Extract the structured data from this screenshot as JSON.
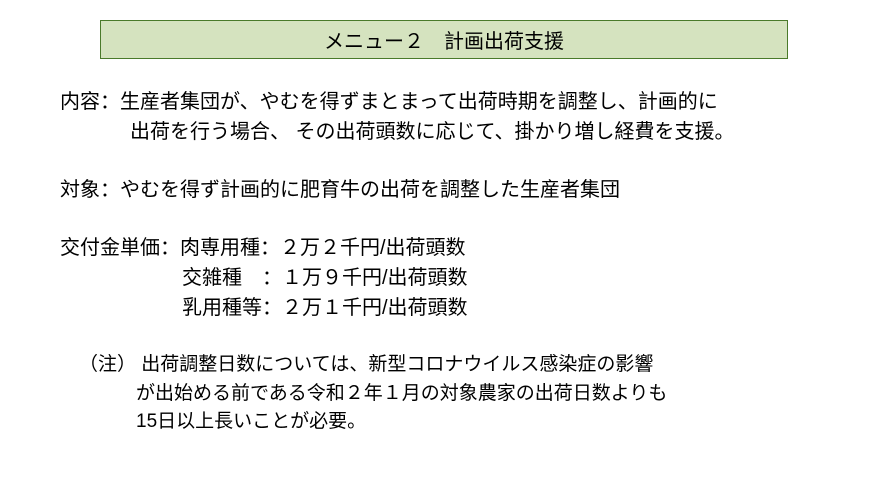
{
  "title": "メニュー２　計画出荷支援",
  "content_line1": "内容：生産者集団が、やむを得ずまとまって出荷時期を調整し、計画的に",
  "content_line2": "出荷を行う場合、 その出荷頭数に応じて、掛かり増し経費を支援。",
  "target_line": "対象：やむを得ず計画的に肥育牛の出荷を調整した生産者集団",
  "price_line1": "交付金単価：肉専用種：２万２千円/出荷頭数",
  "price_line2": "交雑種　：１万９千円/出荷頭数",
  "price_line3": "乳用種等：２万１千円/出荷頭数",
  "note_line1": "（注） 出荷調整日数については、新型コロナウイルス感染症の影響",
  "note_line2": "が出始める前である令和２年１月の対象農家の出荷日数よりも",
  "note_line3": "15日以上長いことが必要。",
  "colors": {
    "title_bg": "#d5e3bf",
    "title_border": "#4a7a2a",
    "page_bg": "#ffffff",
    "text": "#000000"
  }
}
